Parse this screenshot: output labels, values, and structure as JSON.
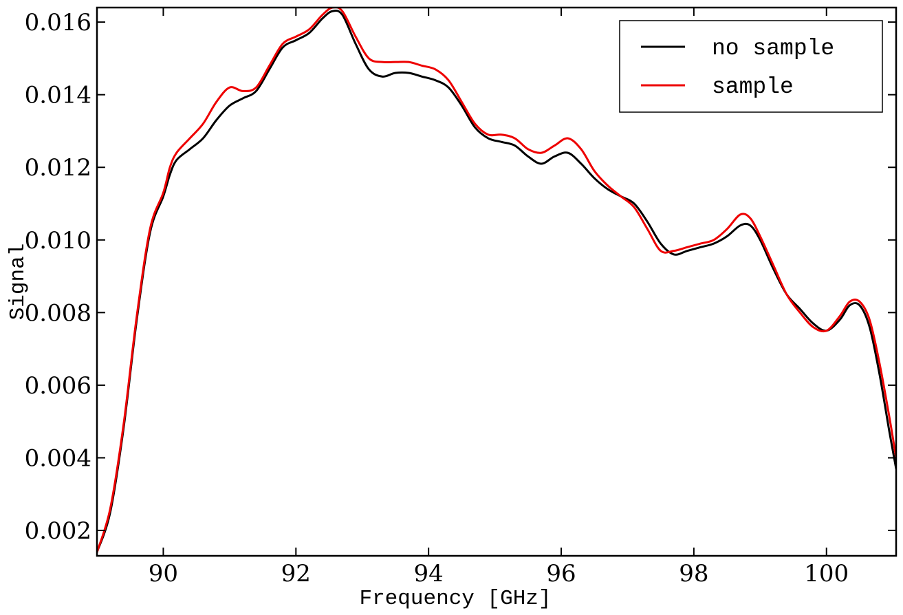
{
  "chart_data": {
    "type": "line",
    "title": "",
    "xlabel": "Frequency [GHz]",
    "ylabel": "Signal",
    "xlim": [
      89.0,
      101.05
    ],
    "ylim": [
      0.0013,
      0.0164
    ],
    "xticks": [
      90,
      92,
      94,
      96,
      98,
      100
    ],
    "yticks": [
      0.002,
      0.004,
      0.006,
      0.008,
      0.01,
      0.012,
      0.014,
      0.016
    ],
    "xtick_labels": [
      "90",
      "92",
      "94",
      "96",
      "98",
      "100"
    ],
    "ytick_labels": [
      "0.002",
      "0.004",
      "0.006",
      "0.008",
      "0.010",
      "0.012",
      "0.014",
      "0.016"
    ],
    "grid": false,
    "legend_position": "top-right",
    "series": [
      {
        "name": "no sample",
        "color": "#000000",
        "points": [
          [
            89.0,
            0.0014
          ],
          [
            89.2,
            0.0025
          ],
          [
            89.4,
            0.0048
          ],
          [
            89.6,
            0.0078
          ],
          [
            89.8,
            0.0102
          ],
          [
            90.0,
            0.0112
          ],
          [
            90.1,
            0.0118
          ],
          [
            90.2,
            0.0122
          ],
          [
            90.4,
            0.0125
          ],
          [
            90.6,
            0.0128
          ],
          [
            90.8,
            0.0133
          ],
          [
            91.0,
            0.0137
          ],
          [
            91.2,
            0.0139
          ],
          [
            91.4,
            0.0141
          ],
          [
            91.6,
            0.0147
          ],
          [
            91.8,
            0.0153
          ],
          [
            92.0,
            0.0155
          ],
          [
            92.2,
            0.0157
          ],
          [
            92.4,
            0.0161
          ],
          [
            92.55,
            0.0163
          ],
          [
            92.7,
            0.0162
          ],
          [
            92.9,
            0.0154
          ],
          [
            93.1,
            0.0147
          ],
          [
            93.3,
            0.0145
          ],
          [
            93.5,
            0.0146
          ],
          [
            93.7,
            0.0146
          ],
          [
            93.9,
            0.0145
          ],
          [
            94.1,
            0.0144
          ],
          [
            94.3,
            0.0142
          ],
          [
            94.5,
            0.0137
          ],
          [
            94.7,
            0.0131
          ],
          [
            94.9,
            0.0128
          ],
          [
            95.1,
            0.0127
          ],
          [
            95.3,
            0.0126
          ],
          [
            95.5,
            0.0123
          ],
          [
            95.7,
            0.0121
          ],
          [
            95.9,
            0.0123
          ],
          [
            96.1,
            0.0124
          ],
          [
            96.3,
            0.0121
          ],
          [
            96.5,
            0.0117
          ],
          [
            96.7,
            0.0114
          ],
          [
            96.9,
            0.0112
          ],
          [
            97.1,
            0.011
          ],
          [
            97.3,
            0.0105
          ],
          [
            97.5,
            0.0099
          ],
          [
            97.7,
            0.0096
          ],
          [
            97.9,
            0.0097
          ],
          [
            98.1,
            0.0098
          ],
          [
            98.3,
            0.0099
          ],
          [
            98.5,
            0.0101
          ],
          [
            98.7,
            0.0104
          ],
          [
            98.85,
            0.0104
          ],
          [
            99.0,
            0.01
          ],
          [
            99.2,
            0.0092
          ],
          [
            99.4,
            0.0085
          ],
          [
            99.6,
            0.0081
          ],
          [
            99.8,
            0.0077
          ],
          [
            100.0,
            0.0075
          ],
          [
            100.2,
            0.0078
          ],
          [
            100.35,
            0.0082
          ],
          [
            100.5,
            0.0082
          ],
          [
            100.65,
            0.0076
          ],
          [
            100.8,
            0.0063
          ],
          [
            100.95,
            0.0047
          ],
          [
            101.05,
            0.0037
          ]
        ]
      },
      {
        "name": "sample",
        "color": "#ee0000",
        "points": [
          [
            89.0,
            0.0014
          ],
          [
            89.2,
            0.0026
          ],
          [
            89.4,
            0.0049
          ],
          [
            89.6,
            0.0079
          ],
          [
            89.8,
            0.0103
          ],
          [
            90.0,
            0.0113
          ],
          [
            90.1,
            0.012
          ],
          [
            90.2,
            0.0124
          ],
          [
            90.4,
            0.0128
          ],
          [
            90.6,
            0.0132
          ],
          [
            90.8,
            0.0138
          ],
          [
            91.0,
            0.0142
          ],
          [
            91.2,
            0.0141
          ],
          [
            91.4,
            0.0142
          ],
          [
            91.6,
            0.0148
          ],
          [
            91.8,
            0.0154
          ],
          [
            92.0,
            0.0156
          ],
          [
            92.2,
            0.0158
          ],
          [
            92.4,
            0.0162
          ],
          [
            92.55,
            0.0164
          ],
          [
            92.7,
            0.0163
          ],
          [
            92.9,
            0.0156
          ],
          [
            93.1,
            0.015
          ],
          [
            93.3,
            0.0149
          ],
          [
            93.5,
            0.0149
          ],
          [
            93.7,
            0.0149
          ],
          [
            93.9,
            0.0148
          ],
          [
            94.1,
            0.0147
          ],
          [
            94.3,
            0.0144
          ],
          [
            94.5,
            0.0138
          ],
          [
            94.7,
            0.0132
          ],
          [
            94.9,
            0.0129
          ],
          [
            95.1,
            0.0129
          ],
          [
            95.3,
            0.0128
          ],
          [
            95.5,
            0.0125
          ],
          [
            95.7,
            0.0124
          ],
          [
            95.9,
            0.0126
          ],
          [
            96.1,
            0.0128
          ],
          [
            96.3,
            0.0125
          ],
          [
            96.5,
            0.0119
          ],
          [
            96.7,
            0.0115
          ],
          [
            96.9,
            0.0112
          ],
          [
            97.1,
            0.0109
          ],
          [
            97.3,
            0.0103
          ],
          [
            97.5,
            0.0097
          ],
          [
            97.7,
            0.0097
          ],
          [
            97.9,
            0.0098
          ],
          [
            98.1,
            0.0099
          ],
          [
            98.3,
            0.01
          ],
          [
            98.5,
            0.0103
          ],
          [
            98.7,
            0.0107
          ],
          [
            98.85,
            0.0106
          ],
          [
            99.0,
            0.0101
          ],
          [
            99.2,
            0.0093
          ],
          [
            99.4,
            0.0085
          ],
          [
            99.6,
            0.008
          ],
          [
            99.8,
            0.0076
          ],
          [
            100.0,
            0.0075
          ],
          [
            100.2,
            0.0079
          ],
          [
            100.35,
            0.0083
          ],
          [
            100.5,
            0.0083
          ],
          [
            100.65,
            0.0078
          ],
          [
            100.8,
            0.0066
          ],
          [
            100.95,
            0.0051
          ],
          [
            101.05,
            0.004
          ]
        ]
      }
    ]
  }
}
